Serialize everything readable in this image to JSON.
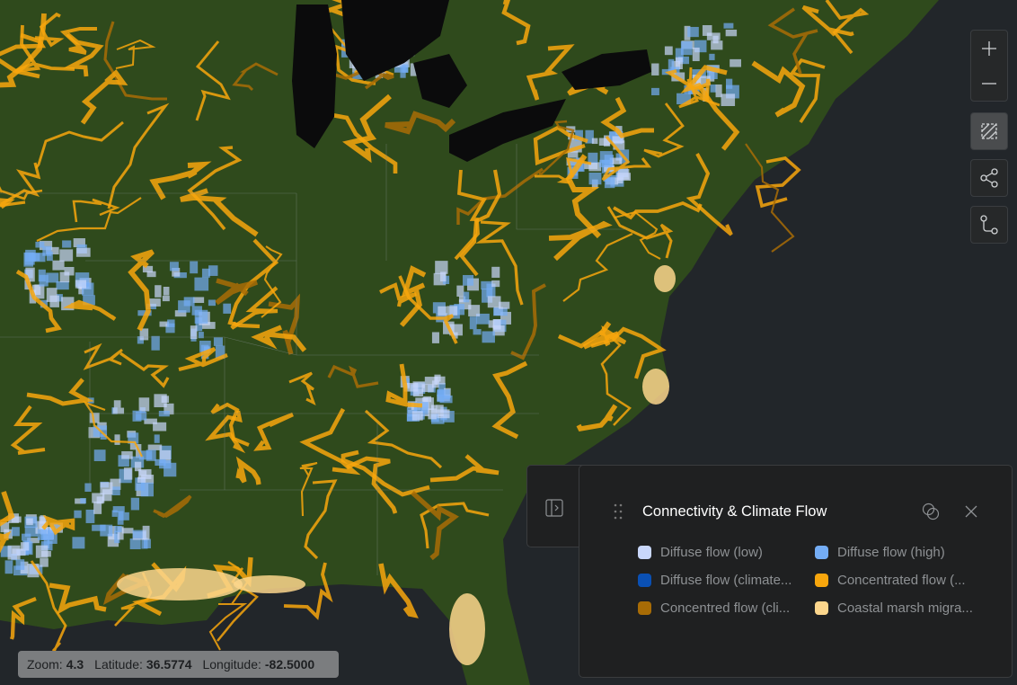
{
  "map": {
    "ocean_color": "#22262a",
    "land_color": "#2f4a1c",
    "lake_color": "#0b0b0c"
  },
  "controls": [
    {
      "name": "zoom-in",
      "icon": "plus-icon"
    },
    {
      "name": "zoom-out",
      "icon": "minus-icon"
    },
    {
      "name": "select-area",
      "icon": "hatched-square-icon",
      "active": true
    },
    {
      "name": "share",
      "icon": "share-icon"
    },
    {
      "name": "compare",
      "icon": "git-compare-icon"
    }
  ],
  "status": {
    "zoom_label": "Zoom:",
    "zoom": "4.3",
    "lat_label": "Latitude:",
    "lat": "36.5774",
    "lon_label": "Longitude:",
    "lon": "-82.5000"
  },
  "legend": {
    "title": "Connectivity & Climate Flow",
    "items": [
      {
        "label": "Diffuse flow (low)",
        "color": "#c9d7fb"
      },
      {
        "label": "Diffuse flow (high)",
        "color": "#74adf5"
      },
      {
        "label": "Diffuse flow (climate...",
        "color": "#0a50b4"
      },
      {
        "label": "Concentrated flow (...",
        "color": "#f7a60d"
      },
      {
        "label": "Concentred flow (cli...",
        "color": "#a86c06"
      },
      {
        "label": "Coastal marsh migra...",
        "color": "#fcd68c"
      }
    ]
  }
}
